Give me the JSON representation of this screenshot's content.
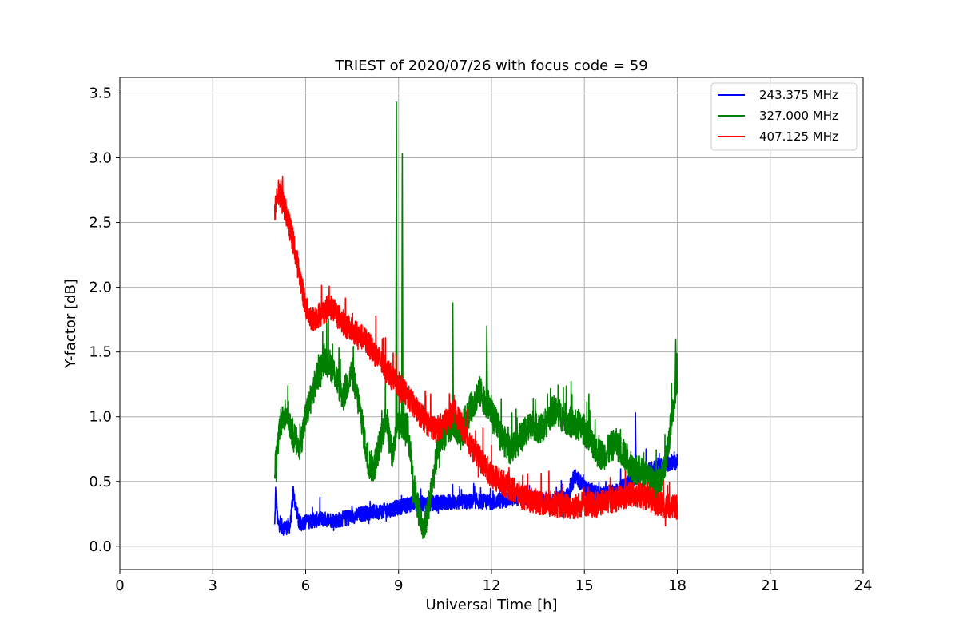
{
  "chart_data": {
    "type": "line",
    "title": "TRIEST of 2020/07/26 with focus code = 59",
    "xlabel": "Universal Time [h]",
    "ylabel": "Y-factor [dB]",
    "xlim": [
      0,
      24
    ],
    "ylim": [
      -0.18,
      3.62
    ],
    "xticks": [
      0,
      3,
      6,
      9,
      12,
      15,
      18,
      21,
      24
    ],
    "yticks": [
      0.0,
      0.5,
      1.0,
      1.5,
      2.0,
      2.5,
      3.0,
      3.5
    ],
    "ytick_labels": [
      "0.0",
      "0.5",
      "1.0",
      "1.5",
      "2.0",
      "2.5",
      "3.0",
      "3.5"
    ],
    "grid": true,
    "legend_position": "top-right",
    "series": [
      {
        "name": "243.375 MHz",
        "color": "#0000ff",
        "x": [
          5.0,
          5.03,
          5.1,
          5.3,
          5.5,
          5.6,
          5.8,
          6.0,
          6.5,
          7.0,
          7.5,
          8.0,
          8.5,
          9.0,
          9.5,
          10.0,
          10.5,
          11.0,
          11.5,
          12.0,
          12.5,
          13.0,
          13.5,
          14.0,
          14.5,
          14.7,
          15.0,
          15.5,
          16.0,
          16.5,
          17.0,
          17.5,
          18.0
        ],
        "y": [
          0.15,
          0.42,
          0.18,
          0.14,
          0.16,
          0.4,
          0.17,
          0.19,
          0.21,
          0.2,
          0.23,
          0.26,
          0.27,
          0.3,
          0.33,
          0.33,
          0.34,
          0.34,
          0.35,
          0.34,
          0.36,
          0.38,
          0.36,
          0.35,
          0.4,
          0.55,
          0.45,
          0.4,
          0.42,
          0.5,
          0.58,
          0.62,
          0.65
        ],
        "band": 0.06
      },
      {
        "name": "327.000 MHz",
        "color": "#008000",
        "x": [
          5.0,
          5.2,
          5.4,
          5.6,
          5.8,
          6.0,
          6.3,
          6.6,
          6.8,
          7.0,
          7.2,
          7.5,
          7.8,
          8.0,
          8.2,
          8.4,
          8.6,
          8.8,
          8.95,
          9.1,
          9.3,
          9.5,
          9.8,
          10.0,
          10.3,
          10.6,
          10.8,
          11.0,
          11.3,
          11.6,
          12.0,
          12.3,
          12.6,
          13.0,
          13.3,
          13.6,
          14.0,
          14.3,
          14.6,
          15.0,
          15.3,
          15.6,
          16.0,
          16.3,
          16.6,
          17.0,
          17.3,
          17.6,
          17.8,
          18.0
        ],
        "y": [
          0.6,
          0.95,
          1.05,
          0.85,
          0.75,
          1.0,
          1.25,
          1.45,
          1.4,
          1.3,
          1.15,
          1.35,
          1.0,
          0.65,
          0.6,
          0.8,
          1.0,
          0.7,
          0.9,
          0.95,
          0.9,
          0.45,
          0.1,
          0.35,
          0.8,
          0.9,
          0.95,
          0.85,
          1.05,
          1.2,
          1.05,
          0.85,
          0.75,
          0.85,
          0.95,
          0.9,
          1.05,
          1.0,
          0.95,
          0.9,
          0.75,
          0.7,
          0.8,
          0.7,
          0.6,
          0.55,
          0.45,
          0.6,
          0.95,
          1.3
        ],
        "band": 0.12
      },
      {
        "name": "407.125 MHz",
        "color": "#ff0000",
        "x": [
          5.0,
          5.1,
          5.2,
          5.4,
          5.6,
          5.8,
          6.0,
          6.2,
          6.5,
          6.8,
          7.0,
          7.3,
          7.6,
          7.9,
          8.2,
          8.5,
          8.8,
          9.0,
          9.3,
          9.6,
          9.9,
          10.2,
          10.5,
          10.8,
          11.1,
          11.4,
          11.7,
          12.0,
          12.3,
          12.6,
          13.0,
          13.4,
          13.8,
          14.2,
          14.6,
          15.0,
          15.4,
          15.8,
          16.2,
          16.6,
          17.0,
          17.4,
          17.8,
          18.0
        ],
        "y": [
          2.6,
          2.75,
          2.7,
          2.55,
          2.35,
          2.1,
          1.85,
          1.75,
          1.8,
          1.85,
          1.8,
          1.7,
          1.65,
          1.6,
          1.5,
          1.4,
          1.3,
          1.25,
          1.15,
          1.05,
          0.95,
          0.9,
          0.95,
          1.05,
          0.9,
          0.75,
          0.65,
          0.55,
          0.5,
          0.45,
          0.38,
          0.35,
          0.33,
          0.32,
          0.3,
          0.33,
          0.32,
          0.35,
          0.38,
          0.4,
          0.38,
          0.32,
          0.3,
          0.3
        ],
        "band": 0.1
      }
    ],
    "spikes": [
      {
        "series": 1,
        "x": 8.93,
        "y": 3.43
      },
      {
        "series": 1,
        "x": 9.12,
        "y": 3.03
      },
      {
        "series": 1,
        "x": 10.75,
        "y": 1.88
      },
      {
        "series": 1,
        "x": 11.85,
        "y": 1.7
      },
      {
        "series": 1,
        "x": 17.95,
        "y": 1.6
      },
      {
        "series": 0,
        "x": 5.6,
        "y": 0.46
      },
      {
        "series": 0,
        "x": 16.65,
        "y": 1.03
      },
      {
        "series": 2,
        "x": 5.2,
        "y": 2.83
      }
    ]
  }
}
